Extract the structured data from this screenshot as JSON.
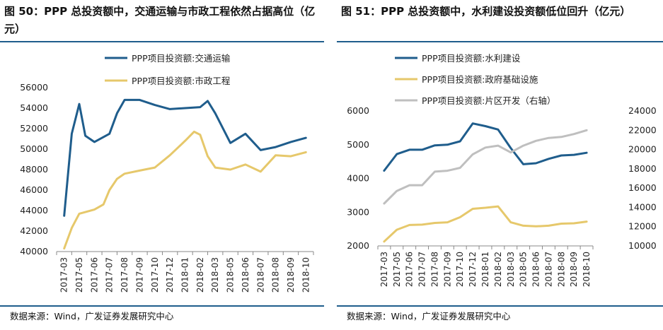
{
  "charts": [
    {
      "id": "left",
      "title": "图 50：PPP 总投资额中，交通运输与市政工程依然占据高位（亿元）",
      "source": "数据来源：Wind，广发证券发展研究中心",
      "chart_data": {
        "type": "line",
        "categories": [
          "2017-03",
          "2017-05",
          "2017-06",
          "2017-07",
          "2017-08",
          "2017-09",
          "2017-10",
          "2017-12",
          "2018-01",
          "2018-02",
          "2018-03",
          "2018-05",
          "2018-06",
          "2018-07",
          "2018-08",
          "2018-09",
          "2018-10"
        ],
        "ylim": [
          40000,
          56000
        ],
        "yticks": [
          40000,
          42000,
          44000,
          46000,
          48000,
          50000,
          52000,
          54000,
          56000
        ],
        "legend_position": "top-left",
        "grid": false,
        "series": [
          {
            "name": "PPP项目投资额:交通运输",
            "color": "#1f5d8c",
            "axis": "left",
            "points": [
              [
                0,
                43500
              ],
              [
                0.5,
                51500
              ],
              [
                1,
                54400
              ],
              [
                1.4,
                51300
              ],
              [
                2,
                50700
              ],
              [
                3,
                51500
              ],
              [
                3.5,
                53500
              ],
              [
                4,
                54800
              ],
              [
                5,
                54800
              ],
              [
                6,
                54300
              ],
              [
                7,
                53900
              ],
              [
                8,
                54000
              ],
              [
                9,
                54100
              ],
              [
                9.5,
                54700
              ],
              [
                10,
                53500
              ],
              [
                11,
                50600
              ],
              [
                12,
                51500
              ],
              [
                13,
                49900
              ],
              [
                14,
                50200
              ],
              [
                15,
                50700
              ],
              [
                16,
                51100
              ]
            ]
          },
          {
            "name": "PPP项目投资额:市政工程",
            "color": "#e6c86b",
            "axis": "left",
            "points": [
              [
                0,
                40300
              ],
              [
                0.5,
                42300
              ],
              [
                1,
                43700
              ],
              [
                2,
                44100
              ],
              [
                2.6,
                44600
              ],
              [
                3,
                46000
              ],
              [
                3.5,
                47100
              ],
              [
                4,
                47600
              ],
              [
                5,
                47900
              ],
              [
                6,
                48200
              ],
              [
                7,
                49400
              ],
              [
                8,
                50800
              ],
              [
                8.6,
                51700
              ],
              [
                9,
                51400
              ],
              [
                9.5,
                49300
              ],
              [
                10,
                48200
              ],
              [
                11,
                48000
              ],
              [
                12,
                48500
              ],
              [
                13,
                47800
              ],
              [
                14,
                49400
              ],
              [
                15,
                49300
              ],
              [
                16,
                49700
              ]
            ]
          }
        ]
      }
    },
    {
      "id": "right",
      "title": "图 51：PPP 总投资额中，水利建设投资额低位回升（亿元）",
      "source": "数据来源：Wind，广发证券发展研究中心",
      "chart_data": {
        "type": "line",
        "categories": [
          "2017-03",
          "2017-05",
          "2017-06",
          "2017-07",
          "2017-08",
          "2017-09",
          "2017-10",
          "2017-12",
          "2018-01",
          "2018-02",
          "2018-03",
          "2018-05",
          "2018-06",
          "2018-07",
          "2018-08",
          "2018-09",
          "2018-10"
        ],
        "ylim": [
          2000,
          6000
        ],
        "yticks": [
          2000,
          3000,
          4000,
          5000,
          6000
        ],
        "y2lim": [
          10000,
          24000
        ],
        "y2ticks": [
          10000,
          12000,
          14000,
          16000,
          18000,
          20000,
          22000,
          24000
        ],
        "legend_position": "top-left",
        "grid": false,
        "series": [
          {
            "name": "PPP项目投资额:水利建设",
            "color": "#1f5d8c",
            "axis": "left",
            "points": [
              [
                0,
                4230
              ],
              [
                1,
                4720
              ],
              [
                2,
                4850
              ],
              [
                3,
                4850
              ],
              [
                4,
                4980
              ],
              [
                5,
                5000
              ],
              [
                6,
                5100
              ],
              [
                7,
                5630
              ],
              [
                8,
                5550
              ],
              [
                9,
                5450
              ],
              [
                10,
                4900
              ],
              [
                11,
                4420
              ],
              [
                12,
                4450
              ],
              [
                13,
                4580
              ],
              [
                14,
                4680
              ],
              [
                15,
                4700
              ],
              [
                16,
                4760
              ]
            ]
          },
          {
            "name": "PPP项目投资额:政府基础设施",
            "color": "#e6c86b",
            "axis": "left",
            "points": [
              [
                0,
                2130
              ],
              [
                1,
                2480
              ],
              [
                2,
                2620
              ],
              [
                3,
                2630
              ],
              [
                4,
                2680
              ],
              [
                5,
                2700
              ],
              [
                6,
                2850
              ],
              [
                7,
                3100
              ],
              [
                8,
                3130
              ],
              [
                9,
                3170
              ],
              [
                10,
                2700
              ],
              [
                11,
                2600
              ],
              [
                12,
                2580
              ],
              [
                13,
                2600
              ],
              [
                14,
                2660
              ],
              [
                15,
                2670
              ],
              [
                16,
                2720
              ]
            ]
          },
          {
            "name": "PPP项目投资额:片区开发（右轴）",
            "color": "#bfbfbf",
            "axis": "right",
            "points": [
              [
                0,
                14400
              ],
              [
                1,
                15700
              ],
              [
                2,
                16300
              ],
              [
                3,
                16300
              ],
              [
                4,
                17700
              ],
              [
                5,
                17800
              ],
              [
                6,
                18100
              ],
              [
                7,
                19500
              ],
              [
                8,
                20200
              ],
              [
                9,
                20400
              ],
              [
                10,
                19700
              ],
              [
                11,
                20400
              ],
              [
                12,
                20900
              ],
              [
                13,
                21200
              ],
              [
                14,
                21300
              ],
              [
                15,
                21600
              ],
              [
                16,
                22000
              ]
            ]
          }
        ]
      }
    }
  ]
}
